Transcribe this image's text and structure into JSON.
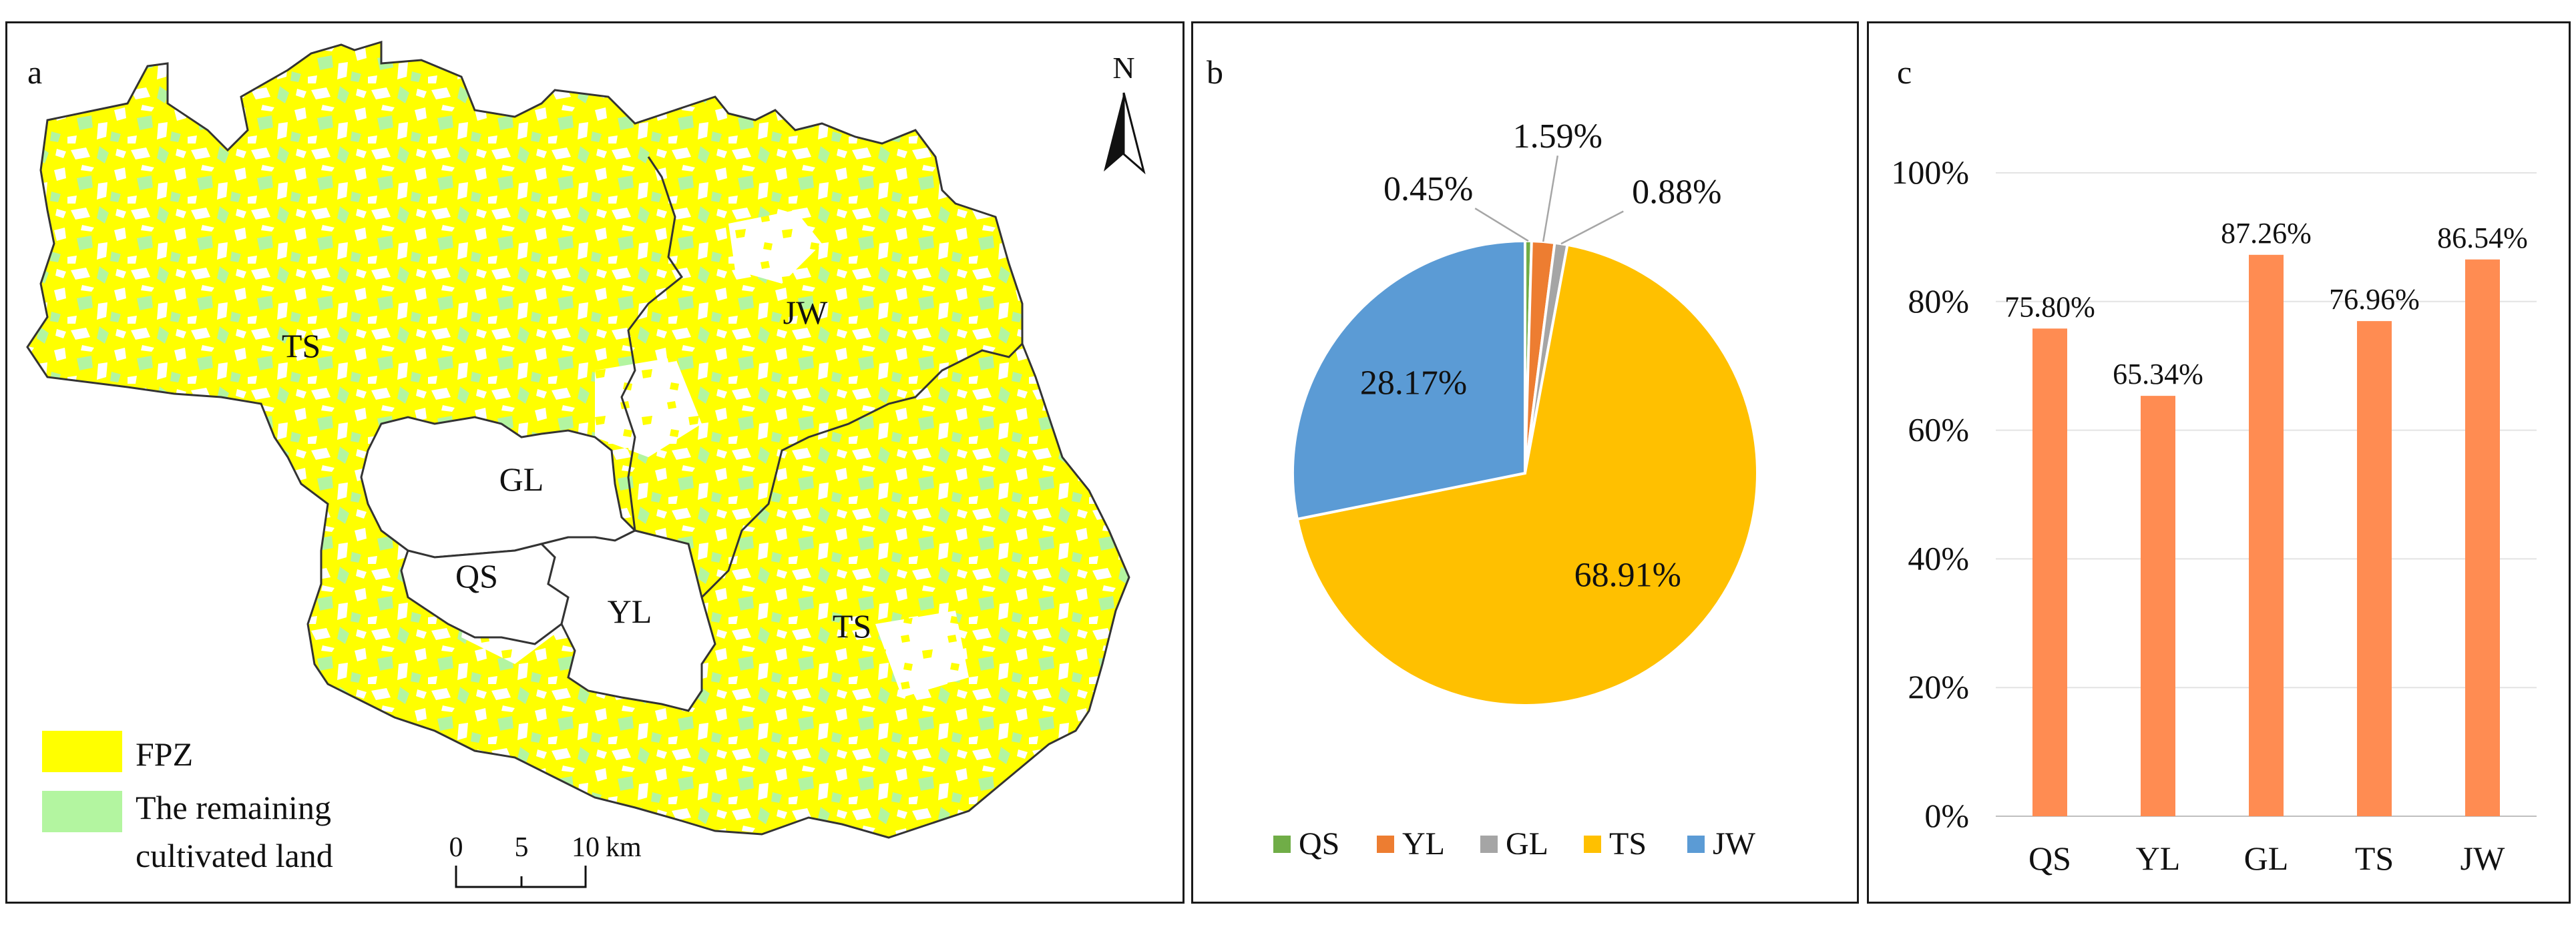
{
  "panel_a": {
    "letter": "a",
    "north": "N",
    "regions": [
      {
        "key": "ts1",
        "label": "TS"
      },
      {
        "key": "jw",
        "label": "JW"
      },
      {
        "key": "gl",
        "label": "GL"
      },
      {
        "key": "qs",
        "label": "QS"
      },
      {
        "key": "yl",
        "label": "YL"
      },
      {
        "key": "ts2",
        "label": "TS"
      }
    ],
    "legend": {
      "fpz_label": "FPZ",
      "fpz_color": "#ffff00",
      "remaining_line1": "The remaining",
      "remaining_line2": "cultivated land",
      "remaining_color": "#b3f5a0"
    },
    "scale": {
      "t0": "0",
      "t5": "5",
      "t10": "10",
      "unit": "km"
    }
  },
  "chart_data": [
    {
      "type": "pie",
      "panel": "b",
      "letter": "b",
      "slices": [
        {
          "name": "QS",
          "value": 0.45,
          "label": "0.45%",
          "color": "#70ad47"
        },
        {
          "name": "YL",
          "value": 1.59,
          "label": "1.59%",
          "color": "#ed7d31"
        },
        {
          "name": "GL",
          "value": 0.88,
          "label": "0.88%",
          "color": "#a5a5a5"
        },
        {
          "name": "TS",
          "value": 68.91,
          "label": "68.91%",
          "color": "#ffc000"
        },
        {
          "name": "JW",
          "value": 28.17,
          "label": "28.17%",
          "color": "#5b9bd5"
        }
      ],
      "legend": [
        "QS",
        "YL",
        "GL",
        "TS",
        "JW"
      ],
      "legend_position": "bottom"
    },
    {
      "type": "bar",
      "panel": "c",
      "letter": "c",
      "categories": [
        "QS",
        "YL",
        "GL",
        "TS",
        "JW"
      ],
      "values": [
        75.8,
        65.34,
        87.26,
        76.96,
        86.54
      ],
      "value_labels": [
        "75.80%",
        "65.34%",
        "87.26%",
        "76.96%",
        "86.54%"
      ],
      "ylim": [
        0,
        100
      ],
      "yticks": [
        "0%",
        "20%",
        "40%",
        "60%",
        "80%",
        "100%"
      ],
      "bar_color": "#ff8c52",
      "grid": true
    }
  ]
}
